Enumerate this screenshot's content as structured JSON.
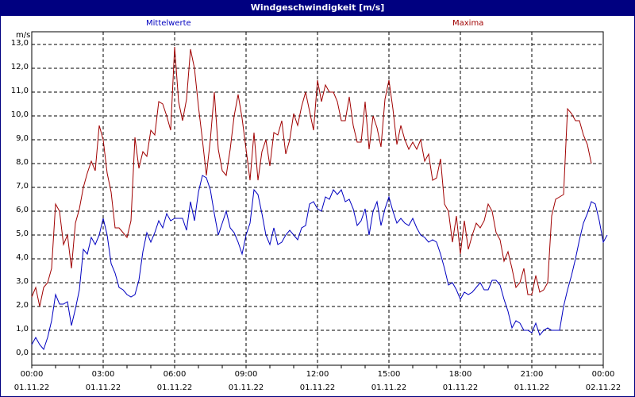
{
  "header": {
    "title": "Windgeschwindigkeit [m/s]"
  },
  "legend": {
    "mean_label": "Mittelwerte",
    "max_label": "Maxima"
  },
  "colors": {
    "title_bg": "#000080",
    "mean": "#0000c0",
    "max": "#a00000",
    "grid": "#000000"
  },
  "chart_data": {
    "type": "line",
    "title": "Windgeschwindigkeit [m/s]",
    "xlabel": "",
    "ylabel": "m/s",
    "ylim": [
      -0.5,
      13.5
    ],
    "grid": true,
    "legend_position": "top",
    "y_ticks": [
      "0,0",
      "1,0",
      "2,0",
      "3,0",
      "4,0",
      "5,0",
      "6,0",
      "7,0",
      "8,0",
      "9,0",
      "10,0",
      "11,0",
      "12,0",
      "13,0"
    ],
    "x_ticks": [
      {
        "time": "00:00",
        "date": "01.11.22"
      },
      {
        "time": "03:00",
        "date": "01.11.22"
      },
      {
        "time": "06:00",
        "date": "01.11.22"
      },
      {
        "time": "09:00",
        "date": "01.11.22"
      },
      {
        "time": "12:00",
        "date": "01.11.22"
      },
      {
        "time": "15:00",
        "date": "01.11.22"
      },
      {
        "time": "18:00",
        "date": "01.11.22"
      },
      {
        "time": "21:00",
        "date": "01.11.22"
      },
      {
        "time": "00:00",
        "date": "02.11.22"
      }
    ],
    "x_interval_minutes": 10,
    "series": [
      {
        "name": "Mittelwerte",
        "color": "#0000c0",
        "values": [
          0.4,
          0.7,
          0.4,
          0.2,
          0.7,
          1.4,
          2.5,
          2.1,
          2.1,
          2.2,
          1.2,
          1.9,
          2.7,
          4.4,
          4.2,
          4.9,
          4.6,
          5.0,
          5.7,
          5.0,
          3.8,
          3.4,
          2.8,
          2.7,
          2.5,
          2.4,
          2.5,
          3.1,
          4.3,
          5.1,
          4.7,
          5.1,
          5.6,
          5.3,
          5.9,
          5.6,
          5.7,
          5.7,
          5.7,
          5.2,
          6.4,
          5.6,
          6.8,
          7.5,
          7.4,
          6.9,
          5.9,
          5.0,
          5.5,
          6.0,
          5.3,
          5.1,
          4.7,
          4.2,
          5.0,
          5.5,
          6.9,
          6.7,
          5.9,
          5.0,
          4.6,
          5.3,
          4.6,
          4.7,
          5.0,
          5.2,
          5.0,
          4.8,
          5.3,
          5.4,
          6.3,
          6.4,
          6.1,
          6.0,
          6.6,
          6.5,
          6.9,
          6.7,
          6.9,
          6.4,
          6.5,
          6.1,
          5.4,
          5.6,
          6.1,
          5.0,
          6.0,
          6.4,
          5.4,
          6.1,
          6.6,
          6.0,
          5.5,
          5.7,
          5.5,
          5.4,
          5.7,
          5.3,
          5.0,
          4.9,
          4.7,
          4.8,
          4.7,
          4.2,
          3.6,
          2.9,
          3.0,
          2.7,
          2.3,
          2.6,
          2.5,
          2.6,
          2.8,
          3.0,
          2.7,
          2.7,
          3.1,
          3.1,
          2.9,
          2.3,
          1.8,
          1.1,
          1.4,
          1.3,
          1.0,
          1.0,
          0.9,
          1.3,
          0.8,
          1.0,
          1.1,
          1.0,
          1.0,
          1.0,
          2.0,
          2.7,
          3.3,
          4.0,
          4.8,
          5.5,
          5.9,
          6.4,
          6.3,
          5.6,
          4.7,
          5.0
        ]
      },
      {
        "name": "Maxima",
        "color": "#a00000",
        "values": [
          2.4,
          2.8,
          2.0,
          2.8,
          3.0,
          3.6,
          6.3,
          6.0,
          4.6,
          5.0,
          3.6,
          5.5,
          6.1,
          7.0,
          7.6,
          8.1,
          7.7,
          9.6,
          9.0,
          7.6,
          6.8,
          5.3,
          5.3,
          5.1,
          4.9,
          5.6,
          9.1,
          7.8,
          8.5,
          8.3,
          9.4,
          9.2,
          10.6,
          10.5,
          10.0,
          9.4,
          12.9,
          10.6,
          9.8,
          10.7,
          12.8,
          12.0,
          10.4,
          9.0,
          7.5,
          9.0,
          11.0,
          8.6,
          7.7,
          7.5,
          8.6,
          10.0,
          10.9,
          9.9,
          8.6,
          7.3,
          9.3,
          7.3,
          8.5,
          9.0,
          7.9,
          9.3,
          9.2,
          9.8,
          8.4,
          9.0,
          10.1,
          9.6,
          10.4,
          11.0,
          10.2,
          9.4,
          11.5,
          10.6,
          11.3,
          11.0,
          11.0,
          10.6,
          9.8,
          9.8,
          10.8,
          9.6,
          8.9,
          8.9,
          10.6,
          8.6,
          10.0,
          9.5,
          8.7,
          10.7,
          11.5,
          10.3,
          8.8,
          9.6,
          9.0,
          8.6,
          8.9,
          8.6,
          9.0,
          8.1,
          8.4,
          7.3,
          7.4,
          8.2,
          6.3,
          6.0,
          4.7,
          5.8,
          4.2,
          5.6,
          4.4,
          5.0,
          5.5,
          5.3,
          5.6,
          6.3,
          6.0,
          5.1,
          4.8,
          3.9,
          4.3,
          3.6,
          2.8,
          3.0,
          3.6,
          2.5,
          2.5,
          3.3,
          2.6,
          2.7,
          3.0,
          5.8,
          6.5,
          6.6,
          6.7,
          10.3,
          10.1,
          9.8,
          9.8,
          9.2,
          8.8,
          8.0
        ]
      }
    ]
  }
}
